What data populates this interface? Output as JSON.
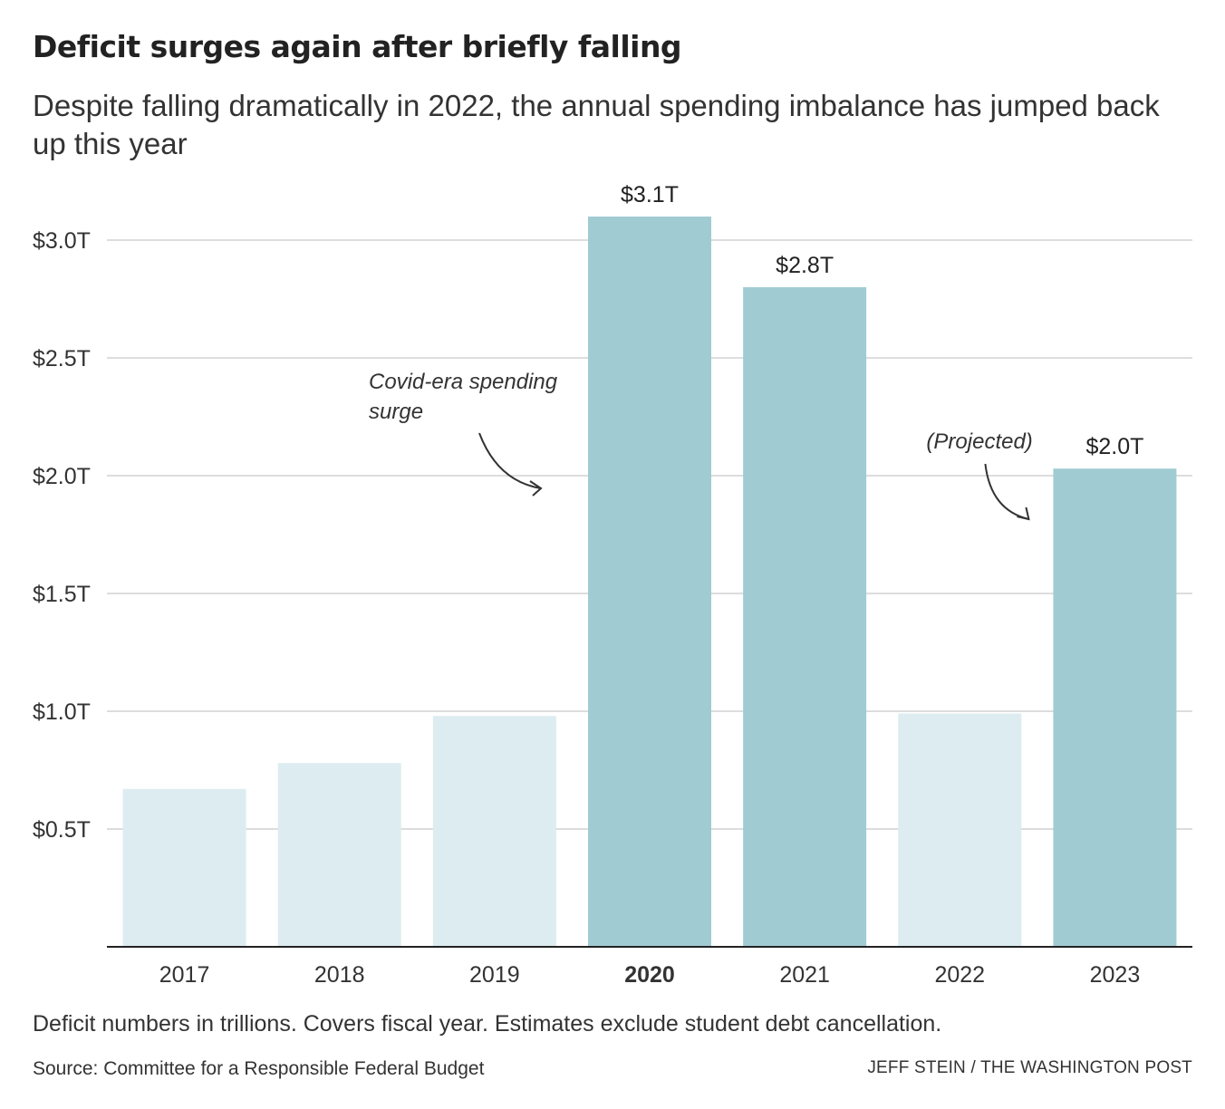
{
  "header": {
    "title": "Deficit surges again after briefly falling",
    "subtitle": "Despite falling dramatically in 2022, the annual spending imbalance has jumped back up this year"
  },
  "chart_data": {
    "type": "bar",
    "categories": [
      "2017",
      "2018",
      "2019",
      "2020",
      "2021",
      "2022",
      "2023"
    ],
    "values": [
      0.67,
      0.78,
      0.98,
      3.1,
      2.8,
      0.99,
      2.03
    ],
    "value_labels": [
      "",
      "",
      "",
      "$3.1T",
      "$2.8T",
      "",
      "$2.0T"
    ],
    "highlighted": [
      false,
      false,
      false,
      true,
      true,
      false,
      true
    ],
    "bold_category": "2020",
    "ylim": [
      0,
      3.2
    ],
    "yticks": [
      0.5,
      1.0,
      1.5,
      2.0,
      2.5,
      3.0
    ],
    "ytick_labels": [
      "$0.5T",
      "$1.0T",
      "$1.5T",
      "$2.0T",
      "$2.5T",
      "$3.0T"
    ],
    "grid": true,
    "colors": {
      "highlight": "#a1cbd2",
      "muted": "#ddecf0",
      "grid": "#dddddd",
      "axis": "#222222"
    },
    "annotations": [
      {
        "lines": [
          "Covid-era spending",
          "surge"
        ],
        "target_category": "2020"
      },
      {
        "lines": [
          "(Projected)"
        ],
        "target_category": "2023"
      }
    ]
  },
  "footer": {
    "note": "Deficit numbers in trillions. Covers fiscal year. Estimates exclude student debt cancellation.",
    "source": "Source: Committee for a Responsible Federal Budget",
    "credit": "JEFF STEIN / THE WASHINGTON POST"
  }
}
